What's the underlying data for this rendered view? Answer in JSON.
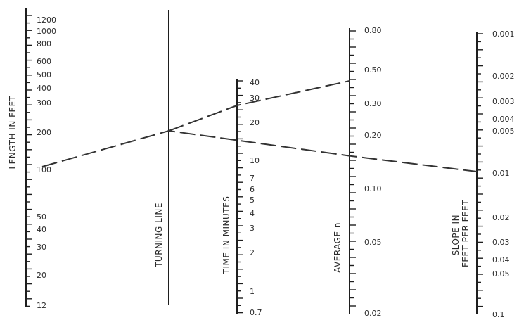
{
  "scales": [
    {
      "title": "LENGTH IN FEET",
      "labels": [
        "1200",
        "1000",
        "800",
        "600",
        "500",
        "400",
        "300",
        "200",
        "100",
        "50",
        "40",
        "30",
        "20",
        "12"
      ]
    },
    {
      "title": "TURNING LINE"
    },
    {
      "title": "TIME IN MINUTES",
      "labels": [
        "40",
        "30",
        "20",
        "10",
        "7",
        "6",
        "5",
        "4",
        "3",
        "2",
        "1",
        "0.7"
      ]
    },
    {
      "title": "AVERAGE n",
      "labels": [
        "0.80",
        "0.50",
        "0.30",
        "0.20",
        "0.10",
        "0.05",
        "0.02"
      ]
    },
    {
      "title": "SLOPE IN FEET PER FEET",
      "labels": [
        "0.001",
        "0.002",
        "0.003",
        "0.004",
        "0.005",
        "0.01",
        "0.02",
        "0.03",
        "0.04",
        "0.05",
        "0.1"
      ]
    }
  ],
  "example": {
    "length_ft": 100,
    "slope_ft_per_ft": 0.01,
    "average_n": 0.4,
    "time_min": 13.5
  }
}
